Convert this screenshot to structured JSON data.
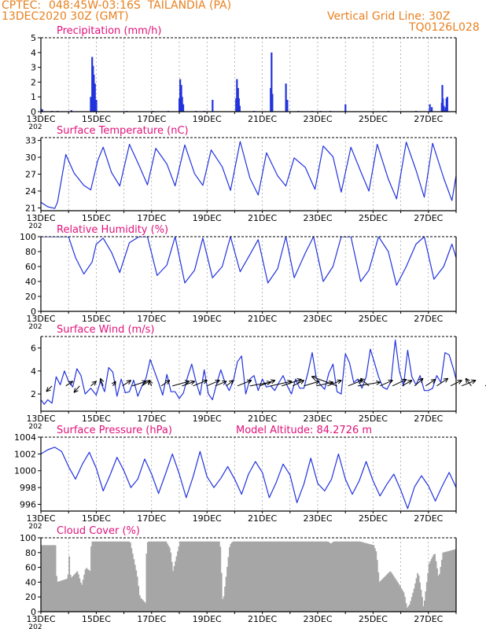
{
  "header": {
    "org": "CPTEC:",
    "location": "048:45W-03:16S  TAILANDIA (PA)",
    "run_time": "13DEC2020 30Z (GMT)",
    "grid_note": "Vertical Grid Line: 30Z",
    "code": "TQ0126L028"
  },
  "colors": {
    "header": "#e8801e",
    "title": "#e0117a",
    "series": "#2233dd",
    "cloud": "#a6a6a6"
  },
  "x_axis": {
    "tick_labels": [
      "13DEC",
      "15DEC",
      "17DEC",
      "19DEC",
      "21DEC",
      "23DEC",
      "25DEC",
      "27DEC"
    ],
    "year_fragment": "202"
  },
  "chart_data": [
    {
      "type": "bar",
      "title": "Precipitation (mm/h)",
      "ylim": [
        0,
        5
      ],
      "yticks": [
        0,
        1,
        2,
        3,
        4,
        5
      ],
      "xlim_days": [
        0,
        15
      ],
      "x": [
        0.0,
        0.05,
        1.1,
        1.8,
        1.85,
        1.88,
        1.91,
        1.95,
        2.0,
        5.0,
        5.03,
        5.07,
        5.1,
        5.14,
        6.2,
        7.05,
        7.08,
        7.12,
        7.15,
        7.18,
        8.3,
        8.33,
        8.36,
        8.85,
        8.9,
        11.0,
        14.05,
        14.12,
        14.48,
        14.5,
        14.52,
        14.55,
        14.58,
        14.62,
        14.65,
        14.68,
        15.55,
        15.58,
        15.61,
        15.64,
        16.55,
        16.58,
        16.61,
        16.65,
        16.68,
        17.55,
        17.58,
        17.62,
        17.65,
        0.4,
        0.6,
        3.1,
        4.05,
        4.6,
        5.6,
        5.9,
        7.7,
        9.3,
        9.8,
        10.1,
        10.45,
        12.55,
        13.55
      ],
      "values": [
        0.2,
        0.15,
        0.1,
        1.0,
        3.7,
        3.1,
        2.5,
        1.9,
        0.8,
        0.9,
        2.2,
        1.8,
        1.0,
        0.5,
        0.8,
        0.9,
        2.2,
        1.6,
        0.9,
        0.4,
        1.6,
        4.0,
        1.2,
        1.9,
        0.8,
        0.5,
        0.5,
        0.3,
        0.6,
        1.8,
        0.9,
        0.4,
        0.1,
        0.3,
        0.9,
        1.0,
        0.6,
        0.4,
        0.2,
        0.1,
        0.5,
        1.1,
        0.9,
        0.5,
        0.2,
        0.3,
        0.6,
        0.4,
        0.2,
        0.05,
        0.05,
        0.05,
        0.05,
        0.05,
        0.05,
        0.05,
        0.05,
        0.05,
        0.05,
        0.05,
        0.05,
        0.05,
        0.05
      ]
    },
    {
      "type": "line",
      "title": "Surface Temperature (nC)",
      "ylim": [
        20.5,
        33.5
      ],
      "yticks": [
        21,
        24,
        27,
        30,
        33
      ],
      "days": [
        0.0,
        0.25,
        0.5,
        0.6,
        0.9,
        1.2,
        1.55,
        1.8,
        2.05,
        2.25,
        2.55,
        2.85,
        3.2,
        3.55,
        3.85,
        4.15,
        4.55,
        4.85,
        5.2,
        5.55,
        5.85,
        6.15,
        6.55,
        6.85,
        7.2,
        7.55,
        7.85,
        8.15,
        8.55,
        8.85,
        9.15,
        9.55,
        9.9,
        10.2,
        10.55,
        10.85,
        11.2,
        11.55,
        11.85,
        12.15,
        12.55,
        12.85,
        13.2,
        13.55,
        13.85,
        14.15,
        14.55,
        14.85,
        15.2,
        15.55,
        15.85,
        16.15,
        16.55,
        16.85,
        17.2,
        17.55,
        17.85,
        18.2
      ],
      "values": [
        22.0,
        21.2,
        20.9,
        22.0,
        30.5,
        27.2,
        25.0,
        24.2,
        29.4,
        31.8,
        27.3,
        24.9,
        32.3,
        28.5,
        25.1,
        31.6,
        28.8,
        24.9,
        32.2,
        27.1,
        25.0,
        31.3,
        28.3,
        24.1,
        32.8,
        26.3,
        23.3,
        30.8,
        26.7,
        24.9,
        29.9,
        28.2,
        24.3,
        32.0,
        30.1,
        23.8,
        31.8,
        27.5,
        24.0,
        32.3,
        26.1,
        22.6,
        32.7,
        27.7,
        22.9,
        32.5,
        26.3,
        22.3,
        32.6,
        30.0,
        24.5,
        30.4,
        28.1,
        23.8,
        32.5,
        26.4,
        22.2,
        27.8
      ]
    },
    {
      "type": "line",
      "title": "Relative Humidity (%)",
      "ylim": [
        0,
        100
      ],
      "yticks": [
        0,
        20,
        40,
        60,
        80,
        100
      ],
      "days": [
        0.0,
        0.3,
        0.5,
        0.7,
        0.85,
        1.0,
        1.25,
        1.55,
        1.85,
        2.0,
        2.25,
        2.55,
        2.85,
        3.2,
        3.55,
        3.85,
        4.2,
        4.55,
        4.85,
        5.2,
        5.55,
        5.85,
        6.2,
        6.55,
        6.85,
        7.2,
        7.55,
        7.85,
        8.2,
        8.55,
        8.85,
        9.15,
        9.55,
        9.85,
        10.2,
        10.55,
        10.85,
        11.2,
        11.55,
        11.85,
        12.2,
        12.55,
        12.85,
        13.2,
        13.55,
        13.85,
        14.2,
        14.55,
        14.85,
        15.2,
        15.55,
        15.85,
        16.2,
        16.55,
        16.85,
        17.2,
        17.55,
        17.85,
        18.2
      ],
      "values": [
        100,
        100,
        100,
        100,
        100,
        100,
        72,
        50,
        66,
        90,
        98,
        79,
        52,
        92,
        100,
        100,
        48,
        62,
        100,
        38,
        55,
        98,
        45,
        60,
        100,
        53,
        76,
        96,
        38,
        57,
        100,
        45,
        78,
        100,
        40,
        60,
        100,
        100,
        40,
        55,
        100,
        80,
        35,
        60,
        90,
        100,
        43,
        60,
        90,
        48,
        82,
        100,
        55,
        75,
        100,
        49,
        80,
        100,
        60
      ]
    },
    {
      "type": "line",
      "title": "Surface Wind (m/s)",
      "ylim": [
        0.5,
        7
      ],
      "yticks": [
        2,
        4,
        6
      ],
      "days": [
        0.0,
        0.12,
        0.25,
        0.4,
        0.55,
        0.7,
        0.85,
        1.0,
        1.15,
        1.3,
        1.45,
        1.6,
        1.8,
        2.0,
        2.15,
        2.3,
        2.45,
        2.6,
        2.75,
        2.9,
        3.05,
        3.2,
        3.35,
        3.5,
        3.65,
        3.8,
        3.95,
        4.1,
        4.25,
        4.4,
        4.55,
        4.7,
        4.85,
        5.0,
        5.15,
        5.3,
        5.45,
        5.6,
        5.75,
        5.9,
        6.05,
        6.2,
        6.35,
        6.5,
        6.65,
        6.8,
        6.95,
        7.1,
        7.25,
        7.4,
        7.55,
        7.7,
        7.85,
        8.0,
        8.15,
        8.3,
        8.45,
        8.6,
        8.75,
        8.9,
        9.05,
        9.2,
        9.35,
        9.5,
        9.65,
        9.8,
        9.95,
        10.1,
        10.25,
        10.4,
        10.55,
        10.7,
        10.85,
        11.0,
        11.15,
        11.3,
        11.45,
        11.6,
        11.75,
        11.9,
        12.05,
        12.2,
        12.35,
        12.5,
        12.65,
        12.8,
        12.95,
        13.1,
        13.25,
        13.4,
        13.55,
        13.7,
        13.85,
        14.0,
        14.15,
        14.3,
        14.45,
        14.6,
        14.75,
        14.9,
        15.05,
        15.2,
        15.35,
        15.5,
        15.65,
        15.8,
        15.95,
        16.1,
        16.25,
        16.4,
        16.55,
        16.7,
        16.85,
        17.0,
        17.15,
        17.3,
        17.45,
        17.6,
        17.75,
        17.9,
        18.05,
        18.2
      ],
      "values": [
        1.5,
        1.1,
        1.5,
        1.2,
        3.5,
        2.8,
        4.0,
        3.1,
        2.6,
        4.2,
        3.6,
        2.0,
        2.5,
        1.9,
        3.1,
        2.2,
        4.3,
        3.9,
        1.8,
        3.3,
        2.1,
        2.2,
        3.2,
        1.8,
        2.7,
        3.4,
        5.0,
        4.0,
        3.0,
        1.9,
        3.7,
        2.2,
        2.2,
        1.6,
        2.1,
        3.5,
        4.6,
        3.1,
        1.9,
        4.1,
        2.0,
        1.5,
        2.9,
        4.1,
        3.0,
        2.3,
        3.1,
        4.8,
        5.3,
        2.0,
        3.3,
        3.6,
        2.3,
        3.3,
        2.6,
        2.7,
        2.3,
        3.0,
        3.6,
        2.7,
        2.0,
        3.3,
        2.5,
        2.5,
        3.9,
        5.6,
        3.4,
        2.8,
        2.4,
        3.8,
        4.6,
        2.2,
        2.0,
        5.5,
        4.7,
        3.0,
        3.3,
        2.5,
        3.5,
        5.9,
        4.7,
        3.5,
        2.6,
        2.4,
        3.1,
        6.7,
        4.0,
        2.7,
        5.8,
        3.5,
        2.8,
        3.6,
        2.3,
        2.3,
        2.5,
        3.6,
        3.0,
        5.6,
        5.4,
        4.2,
        2.8,
        2.5,
        4.3,
        4.0,
        3.0,
        2.3,
        3.6,
        3.7,
        3.5,
        5.3,
        2.1,
        3.8,
        1.7,
        3.1,
        4.6,
        5.0,
        2.3,
        2.0,
        3.5,
        5.1,
        2.8,
        3.6
      ],
      "vector_days": [
        0.4,
        0.9,
        1.4,
        1.8,
        2.25,
        2.6,
        2.95,
        3.3,
        3.65,
        4.0,
        4.35,
        4.75,
        5.1,
        5.5,
        6.0,
        6.3,
        6.7,
        7.1,
        7.55,
        7.9,
        8.3,
        8.7,
        9.1,
        9.5,
        9.95,
        10.35,
        10.7,
        11.1,
        11.45,
        11.85,
        12.25,
        12.7,
        13.05,
        13.5,
        13.9,
        14.3,
        14.8,
        15.2,
        15.55,
        16.05,
        16.5,
        16.85
      ],
      "vector_u": [
        -0.4,
        0.5,
        -0.4,
        0.4,
        -0.2,
        0.2,
        0.6,
        1.0,
        0.6,
        -0.2,
        0.6,
        1.2,
        0.9,
        1.0,
        0.9,
        0.8,
        0.5,
        1.0,
        1.5,
        1.1,
        1.5,
        1.4,
        0.8,
        1.1,
        1.2,
        1.0,
        -1.8,
        1.0,
        1.6,
        -0.6,
        0.9,
        1.0,
        0.7,
        0.6,
        0.7,
        0.8,
        0.8,
        1.0,
        -0.4,
        0.8,
        0.9,
        0.2
      ],
      "vector_v": [
        -0.6,
        0.5,
        -0.7,
        0.5,
        0.8,
        0.5,
        0.6,
        0.5,
        0.6,
        0.6,
        0.6,
        0.5,
        0.5,
        0.6,
        0.6,
        0.5,
        0.6,
        0.6,
        0.4,
        0.6,
        0.5,
        0.7,
        0.6,
        0.5,
        0.4,
        0.6,
        1.0,
        0.6,
        0.4,
        0.8,
        0.6,
        0.7,
        0.6,
        0.8,
        0.7,
        0.8,
        0.6,
        0.6,
        0.8,
        0.7,
        0.6,
        0.9
      ]
    },
    {
      "type": "line",
      "title": "Surface Pressure (hPa)",
      "subtitle": "Model Altitude: 84.2726 m",
      "ylim": [
        995.2,
        1004
      ],
      "yticks": [
        996,
        998,
        1000,
        1002,
        1004
      ],
      "days": [
        0.0,
        0.25,
        0.5,
        0.75,
        1.0,
        1.25,
        1.5,
        1.75,
        2.0,
        2.25,
        2.5,
        2.75,
        3.0,
        3.25,
        3.5,
        3.75,
        4.0,
        4.25,
        4.5,
        4.75,
        5.0,
        5.25,
        5.5,
        5.75,
        6.0,
        6.25,
        6.5,
        6.75,
        7.0,
        7.25,
        7.5,
        7.75,
        8.0,
        8.25,
        8.5,
        8.75,
        9.0,
        9.25,
        9.5,
        9.75,
        10.0,
        10.25,
        10.5,
        10.75,
        11.0,
        11.25,
        11.5,
        11.75,
        12.0,
        12.25,
        12.5,
        12.75,
        13.0,
        13.25,
        13.5,
        13.75,
        14.0,
        14.25,
        14.5,
        14.75,
        15.0,
        15.25,
        15.5,
        15.75,
        16.0,
        16.25,
        16.5,
        16.75,
        17.0,
        17.25,
        17.5,
        17.75,
        18.0,
        18.2
      ],
      "values": [
        1002.0,
        1002.5,
        1002.8,
        1002.3,
        1000.5,
        999.0,
        1000.8,
        1002.2,
        1000.3,
        997.6,
        999.5,
        1001.6,
        1000.0,
        998.0,
        999.0,
        1001.4,
        999.6,
        997.3,
        999.6,
        1002.0,
        999.6,
        996.8,
        999.3,
        1002.3,
        999.3,
        998.0,
        999.1,
        1000.5,
        999.0,
        997.2,
        999.6,
        1001.1,
        999.8,
        996.8,
        998.6,
        1000.8,
        999.5,
        996.2,
        998.4,
        1001.5,
        998.5,
        997.6,
        999.0,
        1002.0,
        999.0,
        997.2,
        998.8,
        1001.1,
        998.8,
        997.0,
        998.4,
        999.6,
        997.7,
        995.5,
        998.1,
        999.4,
        998.2,
        996.4,
        998.2,
        999.8,
        998.0,
        996.0,
        998.1,
        999.6,
        997.9,
        996.4,
        998.7,
        1000.2,
        998.3,
        996.1,
        998.2,
        1000.5,
        997.8,
        995.9
      ]
    },
    {
      "type": "bar",
      "title": "Cloud Cover (%)",
      "ylim": [
        0,
        100
      ],
      "yticks": [
        0,
        20,
        40,
        60,
        80,
        100
      ],
      "days": [
        0.0,
        0.5,
        0.55,
        0.95,
        1.0,
        1.05,
        1.3,
        1.45,
        1.6,
        1.75,
        1.8,
        2.5,
        3.0,
        3.2,
        3.45,
        3.55,
        3.75,
        3.8,
        3.85,
        4.0,
        4.2,
        4.5,
        4.65,
        4.75,
        5.0,
        5.5,
        6.0,
        6.45,
        6.55,
        6.8,
        6.9,
        7.2,
        7.6,
        8.0,
        8.5,
        8.55,
        9.0,
        9.5,
        10.0,
        10.35,
        10.45,
        10.55,
        11.0,
        11.5,
        11.8,
        12.0,
        12.1,
        12.2,
        12.6,
        12.9,
        13.1,
        13.2,
        13.3,
        13.45,
        13.6,
        13.75,
        13.8,
        14.0,
        14.2,
        14.35,
        14.5,
        15.0,
        15.05,
        15.5,
        15.6,
        16.0,
        16.3,
        16.45,
        16.6,
        16.8,
        17.0,
        17.2,
        17.4,
        17.6,
        17.8,
        18.0,
        18.2
      ],
      "values": [
        90,
        90,
        40,
        45,
        75,
        45,
        55,
        35,
        60,
        55,
        95,
        95,
        95,
        95,
        50,
        20,
        12,
        92,
        95,
        95,
        95,
        95,
        85,
        55,
        95,
        95,
        95,
        95,
        10,
        90,
        95,
        95,
        95,
        95,
        95,
        95,
        95,
        95,
        95,
        95,
        92,
        95,
        95,
        95,
        92,
        90,
        80,
        40,
        55,
        38,
        25,
        5,
        10,
        30,
        55,
        20,
        5,
        65,
        80,
        45,
        80,
        85,
        50,
        50,
        92,
        95,
        95,
        45,
        95,
        95,
        95,
        55,
        90,
        85,
        92,
        95,
        95
      ]
    }
  ]
}
